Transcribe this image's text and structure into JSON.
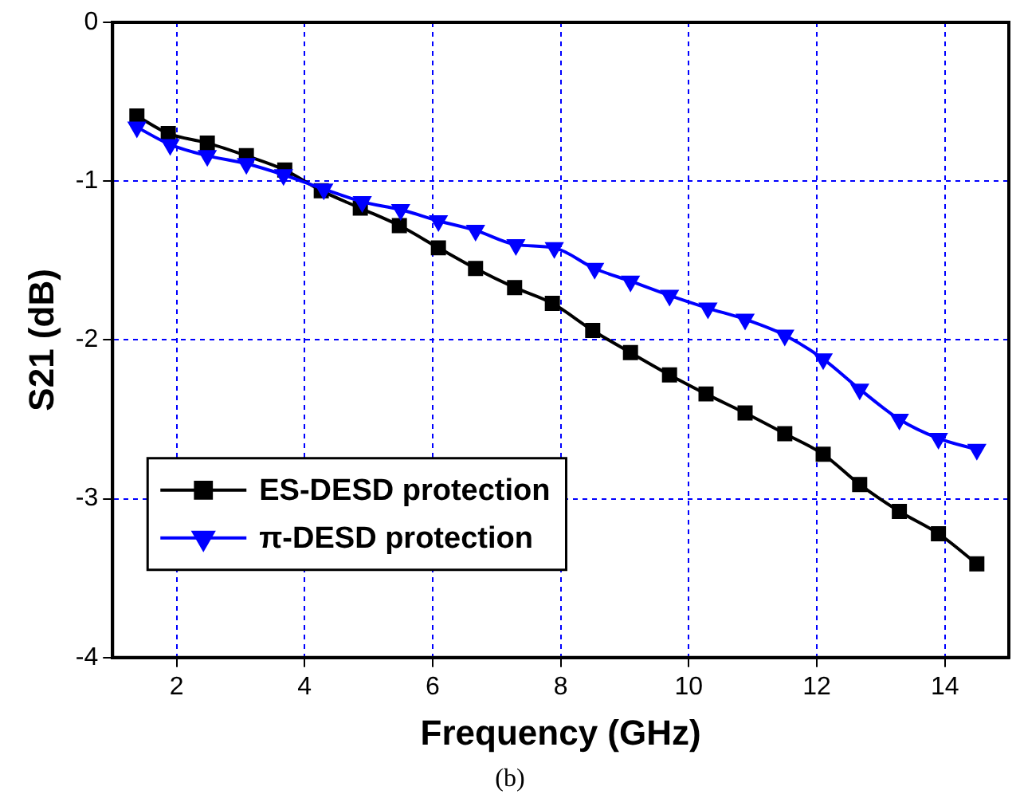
{
  "chart_data": {
    "type": "line",
    "xlabel": "Frequency (GHz)",
    "ylabel": "S21 (dB)",
    "annotations": [
      "(b)"
    ],
    "xlim": [
      1,
      15
    ],
    "xticks": [
      2,
      4,
      6,
      8,
      10,
      12,
      14
    ],
    "ylim": [
      -4,
      0
    ],
    "yticks": [
      0,
      -1,
      -2,
      -3,
      -4
    ],
    "grid": true,
    "legend": "bottom left",
    "series": [
      {
        "name": "ES-DESD protection",
        "color": "#000000",
        "marker": "square",
        "x": [
          1.38,
          1.87,
          2.48,
          3.09,
          3.69,
          4.26,
          4.87,
          5.48,
          6.09,
          6.67,
          7.28,
          7.87,
          8.5,
          9.09,
          9.7,
          10.27,
          10.88,
          11.5,
          12.1,
          12.67,
          13.29,
          13.9,
          14.5
        ],
        "values": [
          -0.59,
          -0.7,
          -0.76,
          -0.84,
          -0.93,
          -1.06,
          -1.17,
          -1.28,
          -1.42,
          -1.55,
          -1.67,
          -1.77,
          -1.94,
          -2.08,
          -2.22,
          -2.34,
          -2.46,
          -2.59,
          -2.72,
          -2.91,
          -3.08,
          -3.22,
          -3.41
        ]
      },
      {
        "name": "π-DESD protection",
        "color": "#0000ff",
        "marker": "triangle",
        "x": [
          1.38,
          1.9,
          2.48,
          3.09,
          3.67,
          4.3,
          4.9,
          5.5,
          6.09,
          6.67,
          7.3,
          7.9,
          8.53,
          9.09,
          9.7,
          10.3,
          10.88,
          11.5,
          12.1,
          12.67,
          13.29,
          13.9,
          14.5
        ],
        "values": [
          -0.66,
          -0.77,
          -0.84,
          -0.89,
          -0.96,
          -1.05,
          -1.13,
          -1.18,
          -1.25,
          -1.31,
          -1.4,
          -1.42,
          -1.55,
          -1.63,
          -1.72,
          -1.8,
          -1.87,
          -1.97,
          -2.12,
          -2.31,
          -2.5,
          -2.62,
          -2.69
        ]
      }
    ]
  }
}
